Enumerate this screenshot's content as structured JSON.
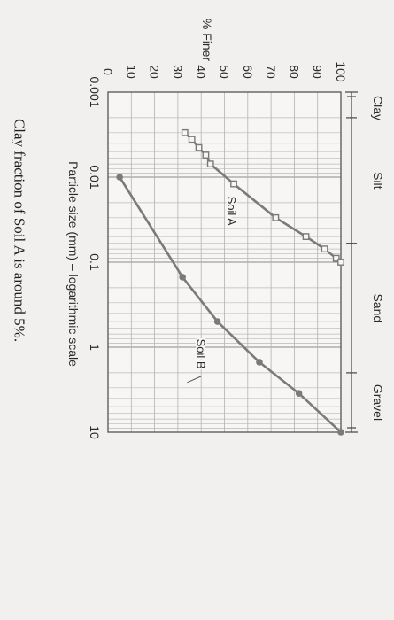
{
  "chart_data": {
    "type": "line",
    "ylabel": "% Finer",
    "xlabel": "Particle size (mm) – logarithmic scale",
    "x_scale": "log",
    "xlim": [
      0.001,
      10
    ],
    "ylim": [
      0,
      100
    ],
    "x_ticks": [
      0.001,
      0.01,
      0.1,
      1,
      10
    ],
    "x_tick_labels": [
      "0.001",
      "0.01",
      "0.1",
      "1",
      "10"
    ],
    "y_ticks": [
      0,
      10,
      20,
      30,
      40,
      50,
      60,
      70,
      80,
      90,
      100
    ],
    "y_tick_labels": [
      "0",
      "10",
      "20",
      "30",
      "40",
      "50",
      "60",
      "70",
      "80",
      "90",
      "100"
    ],
    "grid": true,
    "soil_classes": [
      {
        "name": "Clay",
        "range": [
          0.001,
          0.002
        ]
      },
      {
        "name": "Silt",
        "range": [
          0.002,
          0.06
        ]
      },
      {
        "name": "Sand",
        "range": [
          0.06,
          2
        ]
      },
      {
        "name": "Gravel",
        "range": [
          2,
          10
        ]
      }
    ],
    "series": [
      {
        "name": "Soil A",
        "color": "#7a7a7a",
        "marker": "square",
        "x": [
          0.003,
          0.0036,
          0.0045,
          0.0055,
          0.007,
          0.012,
          0.03,
          0.05,
          0.07,
          0.09,
          0.1
        ],
        "y": [
          33,
          36,
          39,
          42,
          44,
          54,
          72,
          85,
          93,
          98,
          100
        ]
      },
      {
        "name": "Soil B",
        "color": "#7a7a7a",
        "marker": "circle",
        "x": [
          0.01,
          0.15,
          0.5,
          1.5,
          3.5,
          10
        ],
        "y": [
          5,
          32,
          47,
          65,
          82,
          100
        ]
      }
    ]
  },
  "note": "Clay fraction of Soil A is around 5%."
}
